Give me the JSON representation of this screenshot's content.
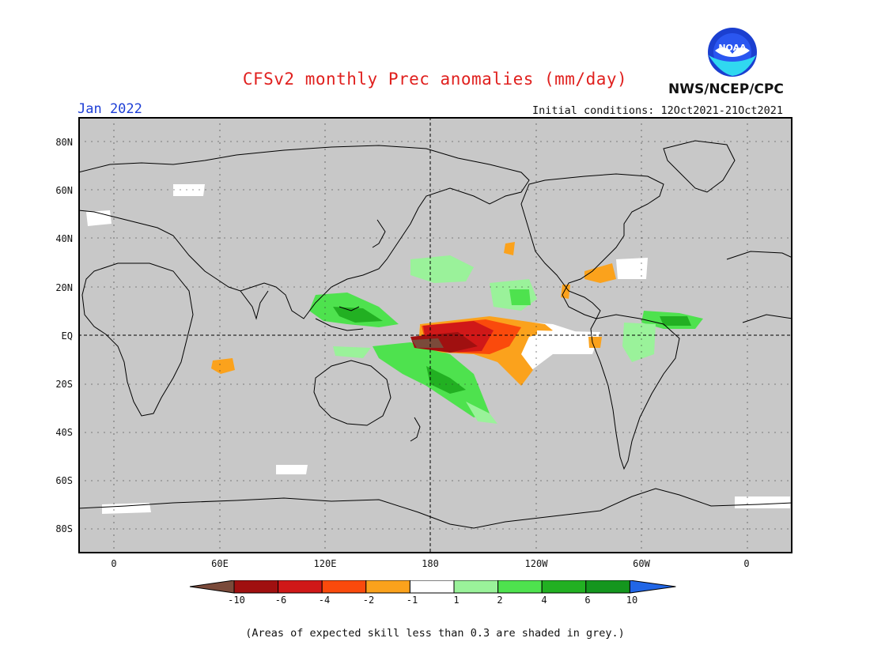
{
  "header": {
    "title": "CFSv2 monthly Prec anomalies (mm/day)",
    "period": "Jan 2022",
    "organization": "NWS/NCEP/CPC",
    "initial_conditions": "Initial conditions: 12Oct2021-21Oct2021",
    "logo_text": "NOAA"
  },
  "map": {
    "latitude_labels": [
      "80N",
      "60N",
      "40N",
      "20N",
      "EQ",
      "20S",
      "40S",
      "60S",
      "80S"
    ],
    "longitude_labels": [
      "0",
      "60E",
      "120E",
      "180",
      "120W",
      "60W",
      "0"
    ],
    "background_color": "#c8c8c8"
  },
  "colorbar": {
    "tick_labels": [
      "-10",
      "-6",
      "-4",
      "-2",
      "-1",
      "1",
      "2",
      "4",
      "6",
      "10"
    ],
    "colors": [
      "#7a4a3a",
      "#a01010",
      "#d01818",
      "#fa4a0c",
      "#fba21c",
      "#ffffff",
      "#9af29a",
      "#4ee24e",
      "#22b022",
      "#14961e",
      "#2166e6"
    ]
  },
  "footer": {
    "note": "(Areas of expected skill less than 0.3 are shaded in grey.)"
  }
}
